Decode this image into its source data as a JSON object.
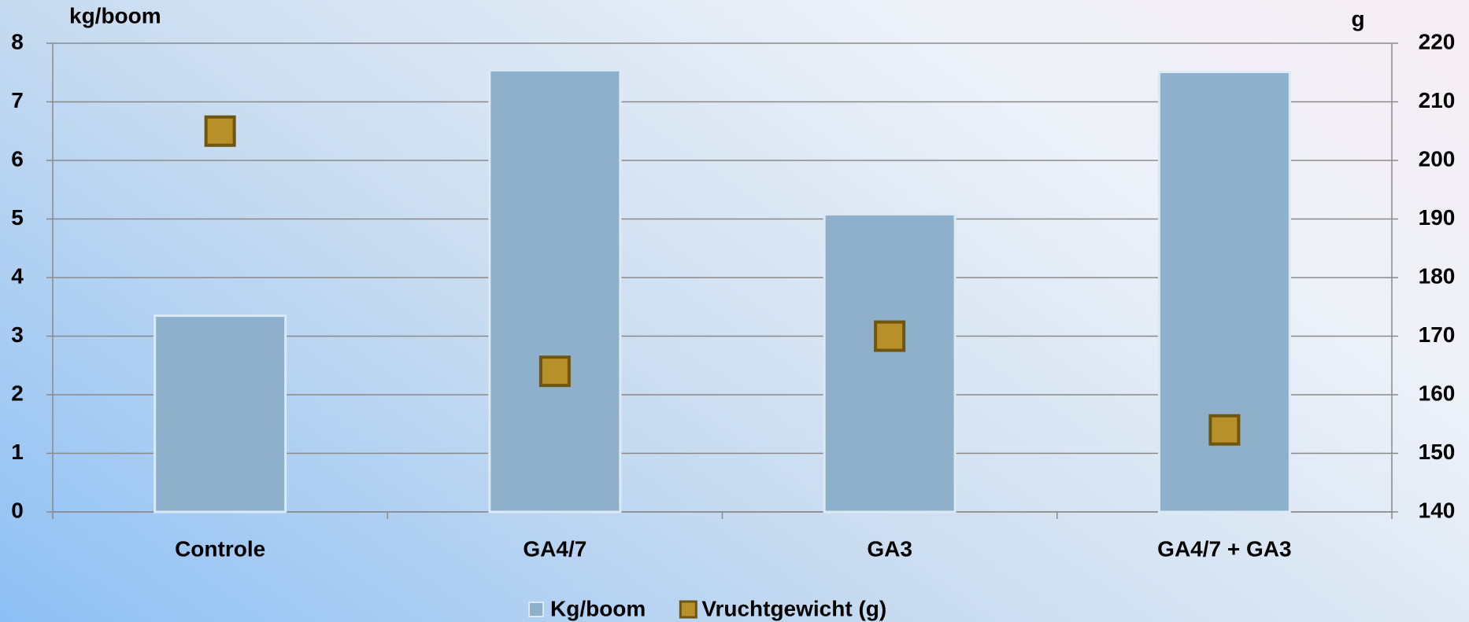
{
  "chart_data": {
    "type": "bar",
    "categories": [
      "Controle",
      "GA4/7",
      "GA3",
      "GA4/7 + GA3"
    ],
    "series": [
      {
        "name": "Kg/boom",
        "type": "bar",
        "color": "#8fb0cb",
        "values": [
          3.35,
          7.54,
          5.08,
          7.51
        ]
      },
      {
        "name": "Vruchtgewicht (g)",
        "type": "marker",
        "axis": "y2",
        "color": "#b8902a",
        "values": [
          205,
          164,
          170,
          154
        ]
      }
    ],
    "y_label": "kg/boom",
    "y2_label": "g",
    "ylim": [
      0,
      8
    ],
    "yticks": [
      0,
      1,
      2,
      3,
      4,
      5,
      6,
      7,
      8
    ],
    "y2lim": [
      140,
      220
    ],
    "y2ticks": [
      140,
      150,
      160,
      170,
      180,
      190,
      200,
      210,
      220
    ],
    "grid": true,
    "legend": "bottom"
  }
}
